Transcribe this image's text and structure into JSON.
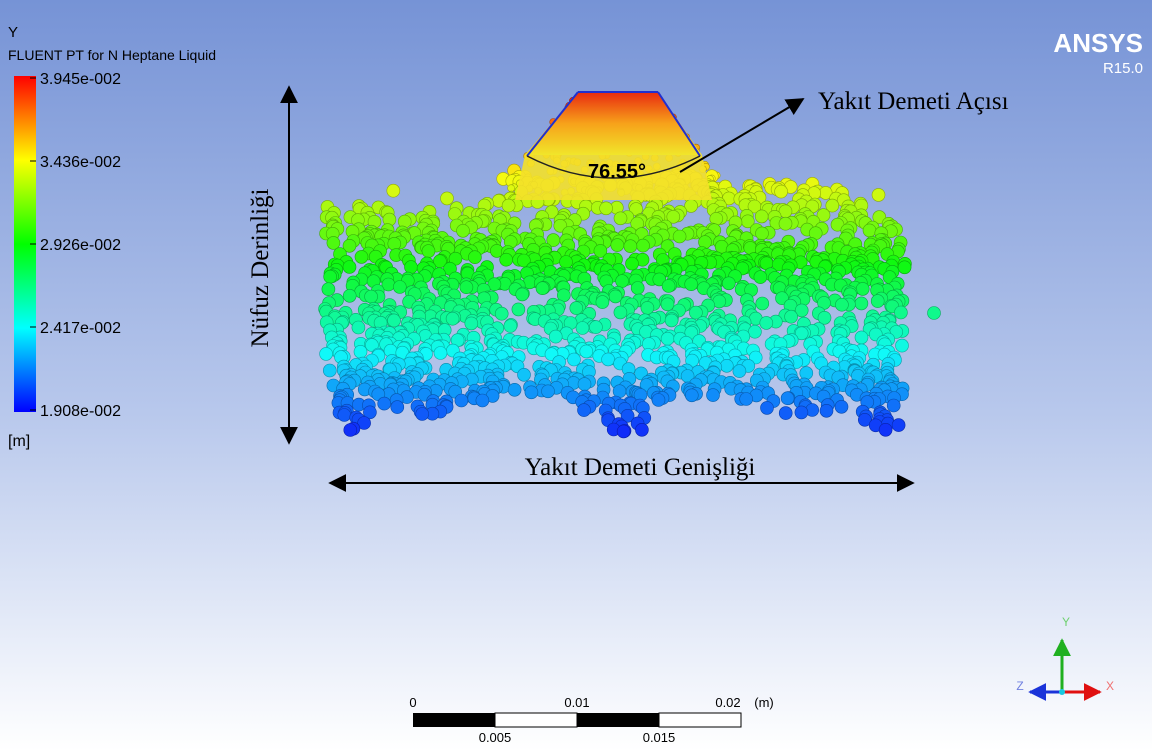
{
  "legend": {
    "variable": "Y",
    "title": "FLUENT PT for N Heptane Liquid",
    "labels": [
      "3.945e-002",
      "3.436e-002",
      "2.926e-002",
      "2.417e-002",
      "1.908e-002"
    ],
    "unit": "[m]"
  },
  "brand": {
    "name": "ANSYS",
    "version": "R15.0"
  },
  "annotations": {
    "angle_label": "Yakıt Demeti Açısı",
    "angle_value": "76.55°",
    "depth": "Nüfuz Derinliği",
    "width": "Yakıt Demeti Genişliği"
  },
  "scale_bar": {
    "top_labels": [
      "0",
      "0.01",
      "0.02"
    ],
    "unit": "(m)",
    "bottom_labels": [
      "0.005",
      "0.015"
    ]
  },
  "triad": {
    "y": "Y",
    "z": "Z",
    "x": "X"
  }
}
